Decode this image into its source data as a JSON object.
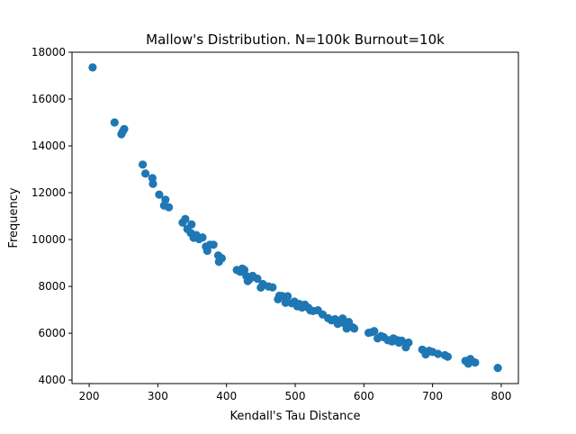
{
  "chart_data": {
    "type": "scatter",
    "title": "Mallow's Distribution. N=100k Burnout=10k",
    "xlabel": "Kendall's Tau Distance",
    "ylabel": "Frequency",
    "xlim": [
      175,
      825
    ],
    "ylim": [
      3850,
      18000
    ],
    "xticks": [
      200,
      300,
      400,
      500,
      600,
      700,
      800
    ],
    "yticks": [
      4000,
      6000,
      8000,
      10000,
      12000,
      14000,
      16000,
      18000
    ],
    "grid": false,
    "marker_color": "#1f77b4",
    "points": [
      [
        205,
        17350
      ],
      [
        237,
        15000
      ],
      [
        247,
        14500
      ],
      [
        249,
        14620
      ],
      [
        251,
        14720
      ],
      [
        278,
        13200
      ],
      [
        282,
        12820
      ],
      [
        292,
        12620
      ],
      [
        293,
        12380
      ],
      [
        302,
        11920
      ],
      [
        309,
        11450
      ],
      [
        311,
        11700
      ],
      [
        316,
        11380
      ],
      [
        336,
        10720
      ],
      [
        340,
        10880
      ],
      [
        343,
        10450
      ],
      [
        348,
        10280
      ],
      [
        349,
        10650
      ],
      [
        352,
        10080
      ],
      [
        356,
        10190
      ],
      [
        360,
        10020
      ],
      [
        365,
        10090
      ],
      [
        370,
        9700
      ],
      [
        372,
        9520
      ],
      [
        376,
        9780
      ],
      [
        381,
        9780
      ],
      [
        388,
        9320
      ],
      [
        389,
        9050
      ],
      [
        393,
        9200
      ],
      [
        415,
        8700
      ],
      [
        420,
        8620
      ],
      [
        423,
        8760
      ],
      [
        426,
        8700
      ],
      [
        429,
        8440
      ],
      [
        431,
        8230
      ],
      [
        434,
        8320
      ],
      [
        438,
        8450
      ],
      [
        445,
        8330
      ],
      [
        450,
        7950
      ],
      [
        453,
        8100
      ],
      [
        461,
        8000
      ],
      [
        467,
        7960
      ],
      [
        475,
        7450
      ],
      [
        477,
        7600
      ],
      [
        481,
        7590
      ],
      [
        486,
        7300
      ],
      [
        489,
        7580
      ],
      [
        495,
        7280
      ],
      [
        499,
        7350
      ],
      [
        503,
        7150
      ],
      [
        506,
        7250
      ],
      [
        510,
        7100
      ],
      [
        514,
        7220
      ],
      [
        519,
        7090
      ],
      [
        522,
        6980
      ],
      [
        526,
        6950
      ],
      [
        533,
        6980
      ],
      [
        540,
        6800
      ],
      [
        548,
        6640
      ],
      [
        553,
        6550
      ],
      [
        558,
        6600
      ],
      [
        562,
        6400
      ],
      [
        566,
        6550
      ],
      [
        569,
        6630
      ],
      [
        572,
        6420
      ],
      [
        575,
        6200
      ],
      [
        578,
        6480
      ],
      [
        584,
        6250
      ],
      [
        586,
        6200
      ],
      [
        607,
        6020
      ],
      [
        612,
        6050
      ],
      [
        615,
        6090
      ],
      [
        620,
        5780
      ],
      [
        625,
        5880
      ],
      [
        629,
        5830
      ],
      [
        635,
        5700
      ],
      [
        641,
        5650
      ],
      [
        643,
        5780
      ],
      [
        649,
        5700
      ],
      [
        651,
        5600
      ],
      [
        655,
        5680
      ],
      [
        661,
        5400
      ],
      [
        665,
        5600
      ],
      [
        685,
        5300
      ],
      [
        690,
        5100
      ],
      [
        695,
        5250
      ],
      [
        700,
        5200
      ],
      [
        708,
        5120
      ],
      [
        718,
        5060
      ],
      [
        722,
        5000
      ],
      [
        748,
        4820
      ],
      [
        752,
        4700
      ],
      [
        755,
        4900
      ],
      [
        762,
        4750
      ],
      [
        795,
        4520
      ]
    ]
  }
}
